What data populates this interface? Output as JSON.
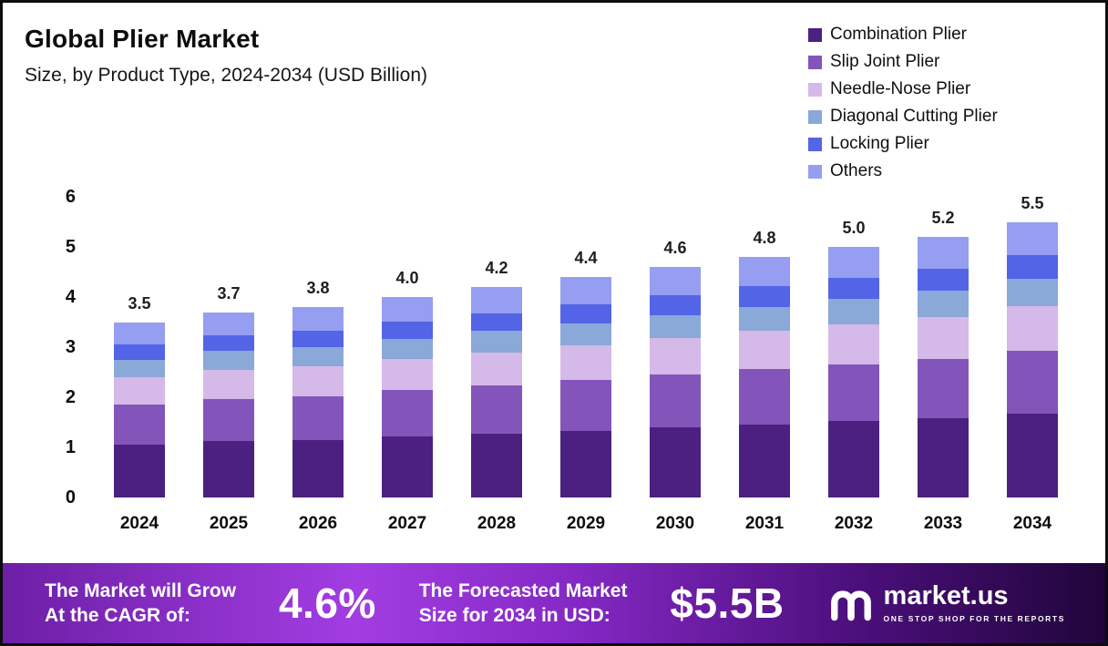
{
  "header": {
    "title": "Global Plier Market",
    "subtitle": "Size, by Product Type, 2024-2034 (USD Billion)"
  },
  "chart_data": {
    "type": "bar",
    "stacked": true,
    "title": "Global Plier Market Size, by Product Type, 2024-2034 (USD Billion)",
    "xlabel": "",
    "ylabel": "",
    "ylim": [
      0,
      6
    ],
    "yticks": [
      0,
      1,
      2,
      3,
      4,
      5,
      6
    ],
    "grid": false,
    "legend_position": "top-right",
    "categories": [
      "2024",
      "2025",
      "2026",
      "2027",
      "2028",
      "2029",
      "2030",
      "2031",
      "2032",
      "2033",
      "2034"
    ],
    "totals": [
      3.5,
      3.7,
      3.8,
      4.0,
      4.2,
      4.4,
      4.6,
      4.8,
      5.0,
      5.2,
      5.5
    ],
    "series": [
      {
        "name": "Combination Plier",
        "color": "#4b2080",
        "values": [
          1.05,
          1.12,
          1.15,
          1.22,
          1.28,
          1.33,
          1.4,
          1.46,
          1.52,
          1.58,
          1.67
        ]
      },
      {
        "name": "Slip Joint Plier",
        "color": "#8355bb",
        "values": [
          0.8,
          0.85,
          0.87,
          0.92,
          0.96,
          1.01,
          1.05,
          1.1,
          1.14,
          1.19,
          1.26
        ]
      },
      {
        "name": "Needle-Nose Plier",
        "color": "#d5b9e8",
        "values": [
          0.55,
          0.58,
          0.6,
          0.63,
          0.66,
          0.7,
          0.73,
          0.76,
          0.8,
          0.83,
          0.88
        ]
      },
      {
        "name": "Diagonal Cutting Plier",
        "color": "#8aa8d8",
        "values": [
          0.35,
          0.37,
          0.38,
          0.4,
          0.42,
          0.44,
          0.46,
          0.48,
          0.5,
          0.52,
          0.55
        ]
      },
      {
        "name": "Locking Plier",
        "color": "#5464e6",
        "values": [
          0.3,
          0.32,
          0.33,
          0.34,
          0.36,
          0.38,
          0.39,
          0.41,
          0.43,
          0.44,
          0.47
        ]
      },
      {
        "name": "Others",
        "color": "#959ef0",
        "values": [
          0.45,
          0.46,
          0.47,
          0.49,
          0.52,
          0.54,
          0.57,
          0.59,
          0.61,
          0.64,
          0.67
        ]
      }
    ]
  },
  "footer": {
    "cagr_label_line1": "The Market will Grow",
    "cagr_label_line2": "At the CAGR of:",
    "cagr_value": "4.6%",
    "forecast_label_line1": "The Forecasted Market",
    "forecast_label_line2": "Size for 2034 in USD:",
    "forecast_value": "$5.5B",
    "brand": "market.us",
    "brand_tagline": "ONE STOP SHOP FOR THE REPORTS"
  }
}
